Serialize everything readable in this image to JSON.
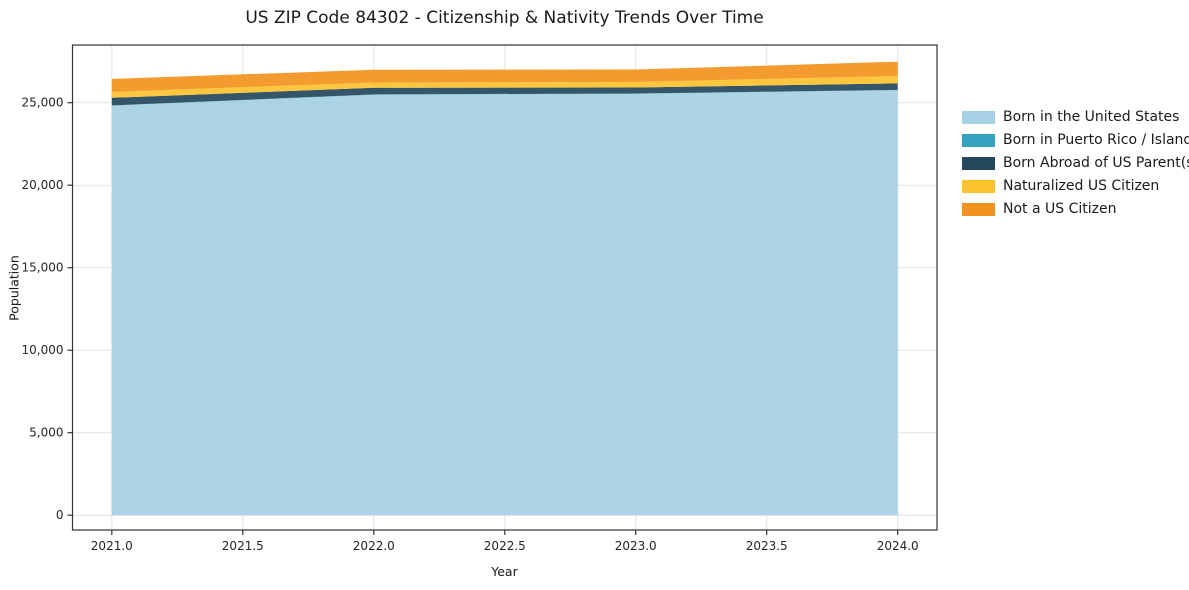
{
  "chart_data": {
    "type": "area",
    "stacked": true,
    "title": "US ZIP Code 84302 - Citizenship & Nativity Trends Over Time",
    "xlabel": "Year",
    "ylabel": "Population",
    "x": [
      2021,
      2022,
      2023,
      2024
    ],
    "series": [
      {
        "name": "Born in the United States",
        "color": "#a6d0e4",
        "values": [
          24820,
          25490,
          25550,
          25760
        ]
      },
      {
        "name": "Born in Puerto Rico / Islands",
        "color": "#35a2bd",
        "values": [
          20,
          15,
          10,
          20
        ]
      },
      {
        "name": "Born Abroad of US Parent(s)",
        "color": "#26485c",
        "values": [
          460,
          400,
          365,
          395
        ]
      },
      {
        "name": "Naturalized US Citizen",
        "color": "#fcc32f",
        "values": [
          360,
          320,
          330,
          450
        ]
      },
      {
        "name": "Not a US Citizen",
        "color": "#f2931f",
        "values": [
          785,
          770,
          760,
          865
        ]
      }
    ],
    "xlim": [
      2020.85,
      2024.15
    ],
    "ylim": [
      -900,
      28500
    ],
    "xtick_values": [
      2021.0,
      2021.5,
      2022.0,
      2022.5,
      2023.0,
      2023.5,
      2024.0
    ],
    "xtick_labels": [
      "2021.0",
      "2021.5",
      "2022.0",
      "2022.5",
      "2023.0",
      "2023.5",
      "2024.0"
    ],
    "ytick_values": [
      0,
      5000,
      10000,
      15000,
      20000,
      25000
    ],
    "ytick_labels": [
      "0",
      "5,000",
      "10,000",
      "15,000",
      "20,000",
      "25,000"
    ],
    "grid": true,
    "legend_position": "right",
    "colors": {
      "background": "#ffffff",
      "grid": "#e3e3e3",
      "spine": "#333333",
      "text": "#1a1a1a"
    },
    "fill_alpha": 0.93
  }
}
